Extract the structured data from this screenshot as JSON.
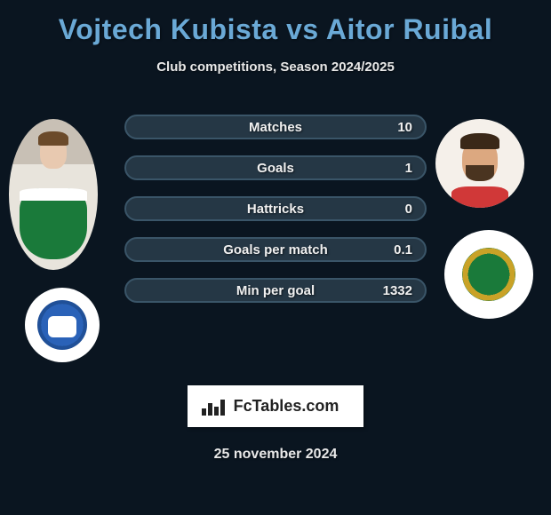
{
  "title": "Vojtech Kubista vs Aitor Ruibal",
  "subtitle": "Club competitions, Season 2024/2025",
  "stats": [
    {
      "label": "Matches",
      "value": "10",
      "fill_pct": 0
    },
    {
      "label": "Goals",
      "value": "1",
      "fill_pct": 0
    },
    {
      "label": "Hattricks",
      "value": "0",
      "fill_pct": 0
    },
    {
      "label": "Goals per match",
      "value": "0.1",
      "fill_pct": 0
    },
    {
      "label": "Min per goal",
      "value": "1332",
      "fill_pct": 0
    }
  ],
  "brand": "FcTables.com",
  "date": "25 november 2024",
  "colors": {
    "background": "#0a1520",
    "title": "#6aa9d6",
    "bar_bg": "#253745",
    "bar_border": "#3a5568",
    "bar_fill": "#1a2a36",
    "left_club_primary": "#2a62b8",
    "right_club_primary": "#1a7a3a"
  }
}
